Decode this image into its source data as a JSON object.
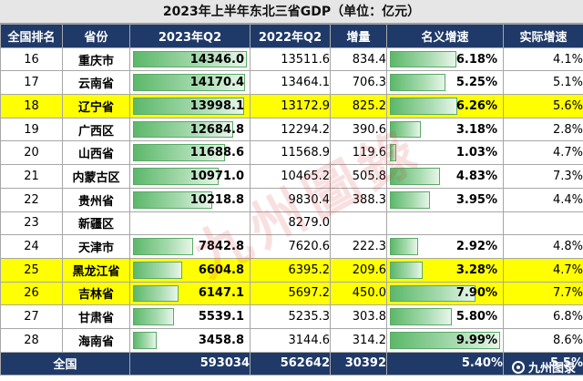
{
  "title": "2023年上半年东北三省GDP（单位：亿元）",
  "headers": [
    "全国排名",
    "省份",
    "2023年Q2",
    "2022年Q2",
    "增量",
    "名义增速",
    "实际增速"
  ],
  "colors": {
    "header_bg": "#1f3a68",
    "highlight": "#ffff00",
    "bar": "#5cb86a"
  },
  "chart_data": {
    "type": "table",
    "rows": [
      {
        "rank": "16",
        "province": "重庆市",
        "q2_2023": "14346.0",
        "q2_2022": "13511.6",
        "increase": "834.4",
        "nominal": "6.18%",
        "real": "4.1%",
        "highlight": false
      },
      {
        "rank": "17",
        "province": "云南省",
        "q2_2023": "14170.4",
        "q2_2022": "13464.1",
        "increase": "706.3",
        "nominal": "5.25%",
        "real": "5.1%",
        "highlight": false
      },
      {
        "rank": "18",
        "province": "辽宁省",
        "q2_2023": "13998.1",
        "q2_2022": "13172.9",
        "increase": "825.2",
        "nominal": "6.26%",
        "real": "5.6%",
        "highlight": true
      },
      {
        "rank": "19",
        "province": "广西区",
        "q2_2023": "12684.8",
        "q2_2022": "12294.2",
        "increase": "390.6",
        "nominal": "3.18%",
        "real": "2.8%",
        "highlight": false
      },
      {
        "rank": "20",
        "province": "山西省",
        "q2_2023": "11688.6",
        "q2_2022": "11568.9",
        "increase": "119.6",
        "nominal": "1.03%",
        "real": "4.7%",
        "highlight": false
      },
      {
        "rank": "21",
        "province": "内蒙古区",
        "q2_2023": "10971.0",
        "q2_2022": "10465.2",
        "increase": "505.8",
        "nominal": "4.83%",
        "real": "7.3%",
        "highlight": false
      },
      {
        "rank": "22",
        "province": "贵州省",
        "q2_2023": "10218.8",
        "q2_2022": "9830.4",
        "increase": "388.3",
        "nominal": "3.95%",
        "real": "4.4%",
        "highlight": false
      },
      {
        "rank": "23",
        "province": "新疆区",
        "q2_2023": "",
        "q2_2022": "8279.0",
        "increase": "",
        "nominal": "",
        "real": "",
        "highlight": false
      },
      {
        "rank": "24",
        "province": "天津市",
        "q2_2023": "7842.8",
        "q2_2022": "7620.6",
        "increase": "222.3",
        "nominal": "2.92%",
        "real": "4.8%",
        "highlight": false
      },
      {
        "rank": "25",
        "province": "黑龙江省",
        "q2_2023": "6604.8",
        "q2_2022": "6395.2",
        "increase": "209.6",
        "nominal": "3.28%",
        "real": "4.7%",
        "highlight": true
      },
      {
        "rank": "26",
        "province": "吉林省",
        "q2_2023": "6147.1",
        "q2_2022": "5697.2",
        "increase": "450.0",
        "nominal": "7.90%",
        "real": "7.7%",
        "highlight": true
      },
      {
        "rank": "27",
        "province": "甘肃省",
        "q2_2023": "5539.1",
        "q2_2022": "5235.3",
        "increase": "303.8",
        "nominal": "5.80%",
        "real": "6.8%",
        "highlight": false
      },
      {
        "rank": "28",
        "province": "海南省",
        "q2_2023": "3458.8",
        "q2_2022": "3144.6",
        "increase": "314.2",
        "nominal": "9.99%",
        "real": "8.6%",
        "highlight": false
      }
    ],
    "total": {
      "label": "全国",
      "q2_2023": "593034",
      "q2_2022": "562642",
      "increase": "30392",
      "nominal": "5.40%",
      "real": "5.5%"
    }
  },
  "watermark": "九州图录",
  "brand": "九州图录"
}
